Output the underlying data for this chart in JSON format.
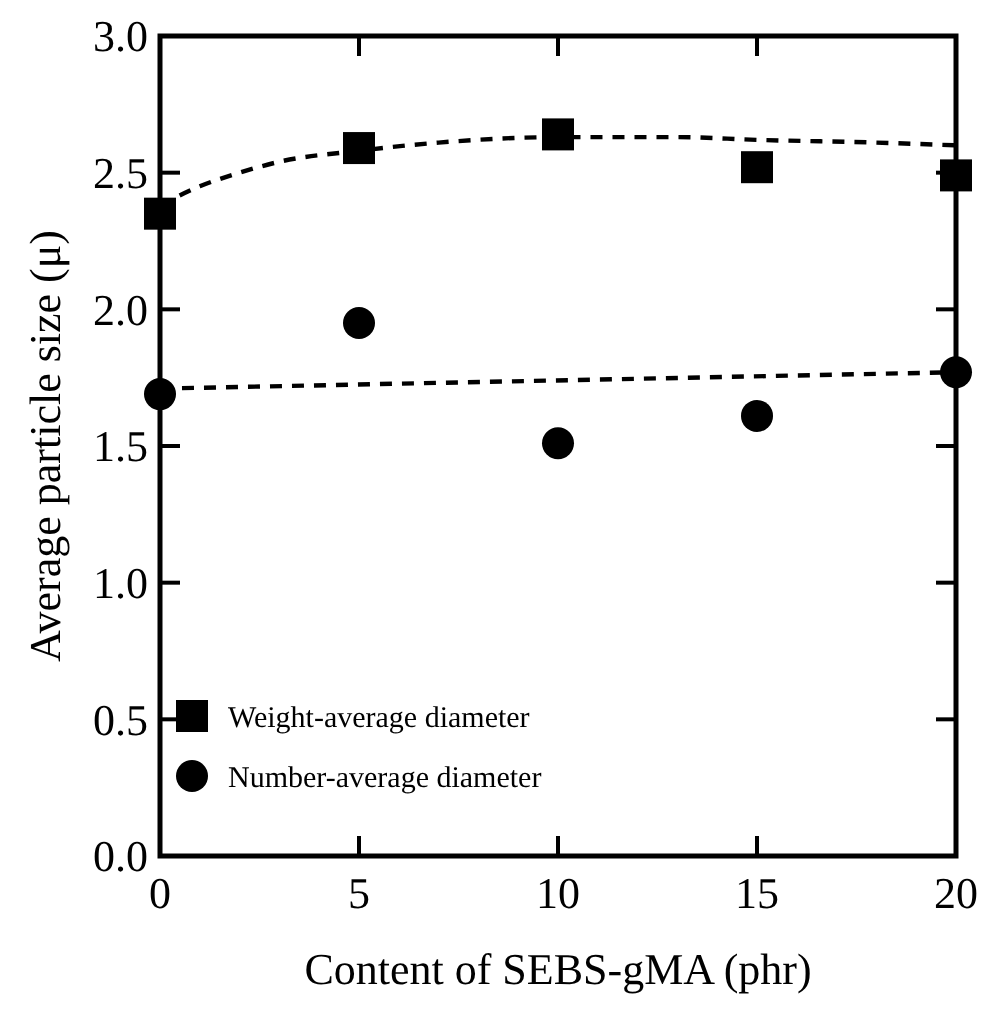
{
  "chart_data": {
    "type": "scatter",
    "xlabel": "Content of SEBS-gMA (phr)",
    "ylabel": "Average particle size (μ)",
    "xlim": [
      0,
      20
    ],
    "ylim": [
      0,
      3
    ],
    "xticks": [
      0,
      5,
      10,
      15,
      20
    ],
    "yticks": [
      {
        "value": 0,
        "label": "0.0"
      },
      {
        "value": 0.5,
        "label": "0.5"
      },
      {
        "value": 1,
        "label": "1.0"
      },
      {
        "value": 1.5,
        "label": "1.5"
      },
      {
        "value": 2,
        "label": "2.0"
      },
      {
        "value": 2.5,
        "label": "2.5"
      },
      {
        "value": 3,
        "label": "3.0"
      }
    ],
    "x": [
      0,
      5,
      10,
      15,
      20
    ],
    "legend": "bottom left",
    "grid": false,
    "series": [
      {
        "name": "Weight-average diameter",
        "color": "#000000",
        "marker": "square",
        "values": [
          2.35,
          2.59,
          2.64,
          2.52,
          2.49
        ]
      },
      {
        "name": "Number-average diameter",
        "color": "#000000",
        "marker": "circle",
        "values": [
          1.69,
          1.95,
          1.51,
          1.61,
          1.77
        ]
      },
      {
        "type": "line",
        "color": "#000000",
        "marker": "none",
        "line_style": "dashed",
        "x": [
          0,
          1,
          2,
          3,
          5,
          7,
          10,
          13,
          15,
          18,
          20
        ],
        "values": [
          2.38,
          2.45,
          2.5,
          2.54,
          2.58,
          2.61,
          2.63,
          2.63,
          2.62,
          2.61,
          2.6
        ]
      },
      {
        "type": "line",
        "color": "#000000",
        "marker": "none",
        "line_style": "dashed",
        "x": [
          0,
          20
        ],
        "values": [
          1.71,
          1.77
        ]
      }
    ]
  }
}
